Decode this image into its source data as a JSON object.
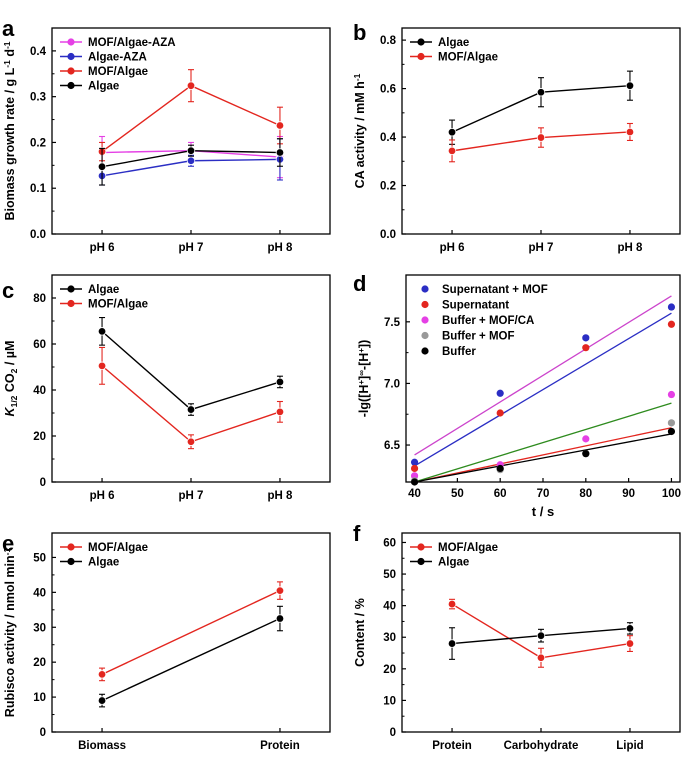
{
  "colors": {
    "black": "#000000",
    "red": "#e3261f",
    "blue": "#2b2ec4",
    "magenta": "#e540e5",
    "gray": "#999999",
    "green": "#2e8b1e",
    "purple": "#cc44cc"
  },
  "chart_data": [
    {
      "id": "a",
      "type": "line",
      "panel_label": "a",
      "categories": [
        "pH 6",
        "pH 7",
        "pH 8"
      ],
      "ylabel": "Biomass growth rate / g L-1 d-1",
      "ylim": [
        0,
        0.45
      ],
      "yticks": [
        0.0,
        0.1,
        0.2,
        0.3,
        0.4
      ],
      "ytick_labels": [
        "0.0",
        "0.1",
        "0.2",
        "0.3",
        "0.4"
      ],
      "legend_position": "top-left",
      "series": [
        {
          "name": "MOF/Algae-AZA",
          "color": "#e540e5",
          "values": [
            0.178,
            0.182,
            0.168
          ],
          "errors": [
            0.035,
            0.018,
            0.045
          ]
        },
        {
          "name": "Algae-AZA",
          "color": "#2b2ec4",
          "values": [
            0.127,
            0.16,
            0.163
          ],
          "errors": [
            0.02,
            0.012,
            0.045
          ]
        },
        {
          "name": "MOF/Algae",
          "color": "#e3261f",
          "values": [
            0.18,
            0.324,
            0.237
          ],
          "errors": [
            0.02,
            0.035,
            0.04
          ]
        },
        {
          "name": "Algae",
          "color": "#000000",
          "values": [
            0.147,
            0.182,
            0.178
          ],
          "errors": [
            0.04,
            0.012,
            0.03
          ]
        }
      ]
    },
    {
      "id": "b",
      "type": "line",
      "panel_label": "b",
      "categories": [
        "pH 6",
        "pH 7",
        "pH 8"
      ],
      "ylabel": "CA activity / mM h-1",
      "ylim": [
        0,
        0.85
      ],
      "yticks": [
        0.0,
        0.2,
        0.4,
        0.6,
        0.8
      ],
      "ytick_labels": [
        "0.0",
        "0.2",
        "0.4",
        "0.6",
        "0.8"
      ],
      "legend_position": "top-left",
      "series": [
        {
          "name": "Algae",
          "color": "#000000",
          "values": [
            0.42,
            0.585,
            0.612
          ],
          "errors": [
            0.05,
            0.06,
            0.06
          ]
        },
        {
          "name": "MOF/Algae",
          "color": "#e3261f",
          "values": [
            0.343,
            0.398,
            0.421
          ],
          "errors": [
            0.045,
            0.04,
            0.035
          ]
        }
      ]
    },
    {
      "id": "c",
      "type": "line",
      "panel_label": "c",
      "categories": [
        "pH 6",
        "pH 7",
        "pH 8"
      ],
      "ylabel": "K1/2 CO2 / µM",
      "ylim": [
        0,
        90
      ],
      "yticks": [
        0,
        20,
        40,
        60,
        80
      ],
      "ytick_labels": [
        "0",
        "20",
        "40",
        "60",
        "80"
      ],
      "legend_position": "top-left",
      "series": [
        {
          "name": "Algae",
          "color": "#000000",
          "values": [
            65.5,
            31.5,
            43.5
          ],
          "errors": [
            6,
            2.5,
            2.5
          ]
        },
        {
          "name": "MOF/Algae",
          "color": "#e3261f",
          "values": [
            50.5,
            17.5,
            30.5
          ],
          "errors": [
            8,
            3,
            4.5
          ]
        }
      ]
    },
    {
      "id": "d",
      "type": "scatter",
      "panel_label": "d",
      "xlabel": "t / s",
      "ylabel": "-lg([H+]∞-[H+])",
      "xlim": [
        38,
        102
      ],
      "xticks": [
        40,
        50,
        60,
        70,
        80,
        90,
        100
      ],
      "xtick_labels": [
        "40",
        "50",
        "60",
        "70",
        "80",
        "90",
        "100"
      ],
      "ylim": [
        6.2,
        7.88
      ],
      "yticks": [
        6.5,
        7.0,
        7.5
      ],
      "ytick_labels": [
        "6.5",
        "7.0",
        "7.5"
      ],
      "legend_position": "top-left",
      "series": [
        {
          "name": "Supernatant + MOF",
          "color": "#2b2ec4",
          "x": [
            40,
            60,
            80,
            100
          ],
          "y": [
            6.36,
            6.92,
            7.37,
            7.62
          ],
          "fit_color": "#2b2ec4",
          "fit": [
            6.33,
            7.57
          ]
        },
        {
          "name": "Supernatant",
          "color": "#e3261f",
          "x": [
            40,
            60,
            80,
            100
          ],
          "y": [
            6.31,
            6.76,
            7.29,
            7.48
          ],
          "fit_color": "#e3261f",
          "fit": [
            6.19,
            6.64
          ]
        },
        {
          "name": "Buffer + MOF/CA",
          "color": "#e540e5",
          "x": [
            40,
            60,
            80,
            100
          ],
          "y": [
            6.25,
            6.34,
            6.55,
            6.91
          ],
          "fit_color": "#cc44cc",
          "fit": [
            6.42,
            7.71
          ]
        },
        {
          "name": "Buffer + MOF",
          "color": "#999999",
          "x": [
            40,
            60,
            80,
            100
          ],
          "y": [
            6.21,
            6.3,
            6.43,
            6.68
          ],
          "fit_color": "#2e8b1e",
          "fit": [
            6.18,
            6.84
          ]
        },
        {
          "name": "Buffer",
          "color": "#000000",
          "x": [
            40,
            60,
            80,
            100
          ],
          "y": [
            6.2,
            6.31,
            6.43,
            6.61
          ],
          "fit_color": "#000000",
          "fit": [
            6.18,
            6.59
          ]
        }
      ]
    },
    {
      "id": "e",
      "type": "line",
      "panel_label": "e",
      "categories": [
        "Biomass",
        "Protein"
      ],
      "ylabel": "Rubisco activity / nmol min-1",
      "ylim": [
        0,
        57
      ],
      "yticks": [
        0,
        10,
        20,
        30,
        40,
        50
      ],
      "ytick_labels": [
        "0",
        "10",
        "20",
        "30",
        "40",
        "50"
      ],
      "legend_position": "top-left",
      "series": [
        {
          "name": "MOF/Algae",
          "color": "#e3261f",
          "values": [
            16.5,
            40.5
          ],
          "errors": [
            1.8,
            2.5
          ]
        },
        {
          "name": "Algae",
          "color": "#000000",
          "values": [
            9.0,
            32.5
          ],
          "errors": [
            1.8,
            3.5
          ]
        }
      ]
    },
    {
      "id": "f",
      "type": "line",
      "panel_label": "f",
      "categories": [
        "Protein",
        "Carbohydrate",
        "Lipid"
      ],
      "ylabel": "Content / %",
      "ylim": [
        0,
        63
      ],
      "yticks": [
        0,
        10,
        20,
        30,
        40,
        50,
        60
      ],
      "ytick_labels": [
        "0",
        "10",
        "20",
        "30",
        "40",
        "50",
        "60"
      ],
      "legend_position": "top-left",
      "series": [
        {
          "name": "MOF/Algae",
          "color": "#e3261f",
          "values": [
            40.5,
            23.5,
            28
          ],
          "errors": [
            1.5,
            3,
            2.5
          ]
        },
        {
          "name": "Algae",
          "color": "#000000",
          "values": [
            28,
            30.5,
            32.8
          ],
          "errors": [
            5,
            2,
            1.8
          ]
        }
      ]
    }
  ]
}
